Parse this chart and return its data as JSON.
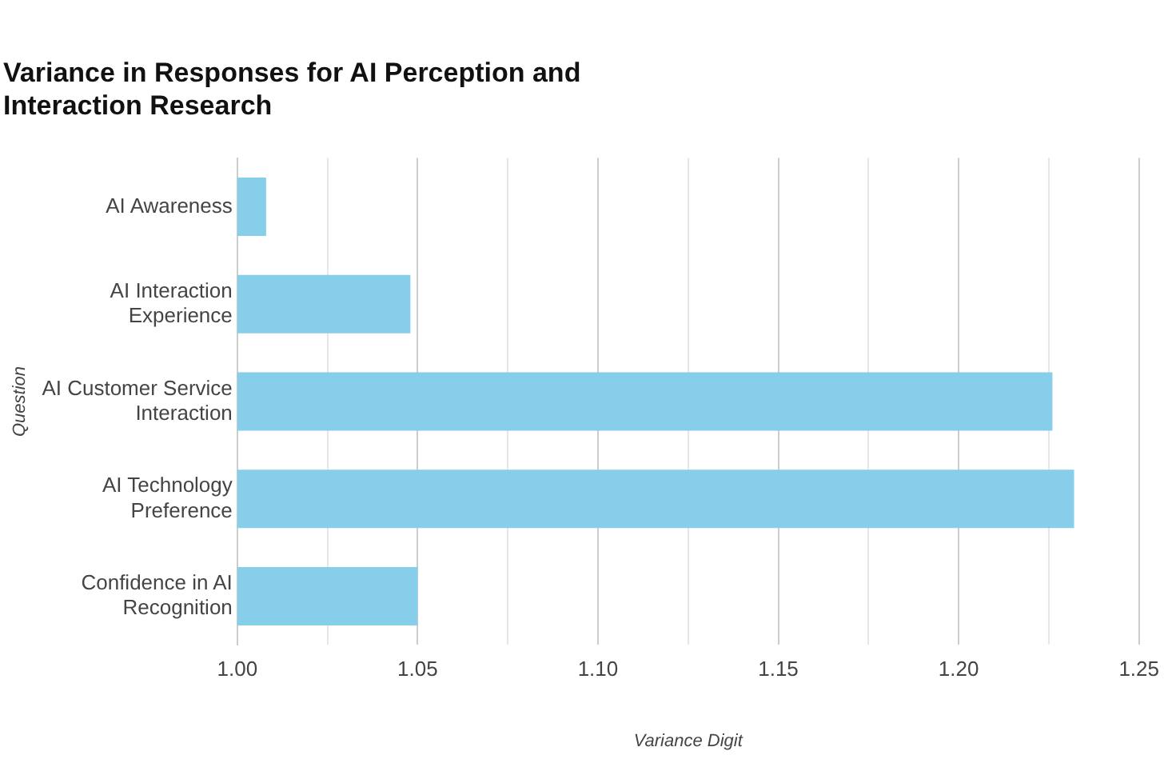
{
  "chart_data": {
    "type": "bar",
    "orientation": "horizontal",
    "title": "Variance in Responses for AI Perception and Interaction Research",
    "xlabel": "Variance Digit",
    "ylabel": "Question",
    "categories": [
      "AI Awareness",
      "AI Interaction Experience",
      "AI Customer Service Interaction",
      "AI Technology Preference",
      "Confidence in AI Recognition"
    ],
    "values": [
      1.008,
      1.048,
      1.226,
      1.232,
      1.05
    ],
    "color": "#87ceeb",
    "xlim": [
      1,
      1.25
    ],
    "xticks": [
      {
        "value": 1,
        "label": "1.00"
      },
      {
        "value": 1.025,
        "label": null
      },
      {
        "value": 1.05,
        "label": "1.05"
      },
      {
        "value": 1.075,
        "label": null
      },
      {
        "value": 1.1,
        "label": "1.10"
      },
      {
        "value": 1.125,
        "label": null
      },
      {
        "value": 1.15,
        "label": "1.15"
      },
      {
        "value": 1.175,
        "label": null
      },
      {
        "value": 1.2,
        "label": "1.20"
      },
      {
        "value": 1.225,
        "label": null
      },
      {
        "value": 1.25,
        "label": "1.25"
      }
    ],
    "grid": "x",
    "legend": false
  }
}
